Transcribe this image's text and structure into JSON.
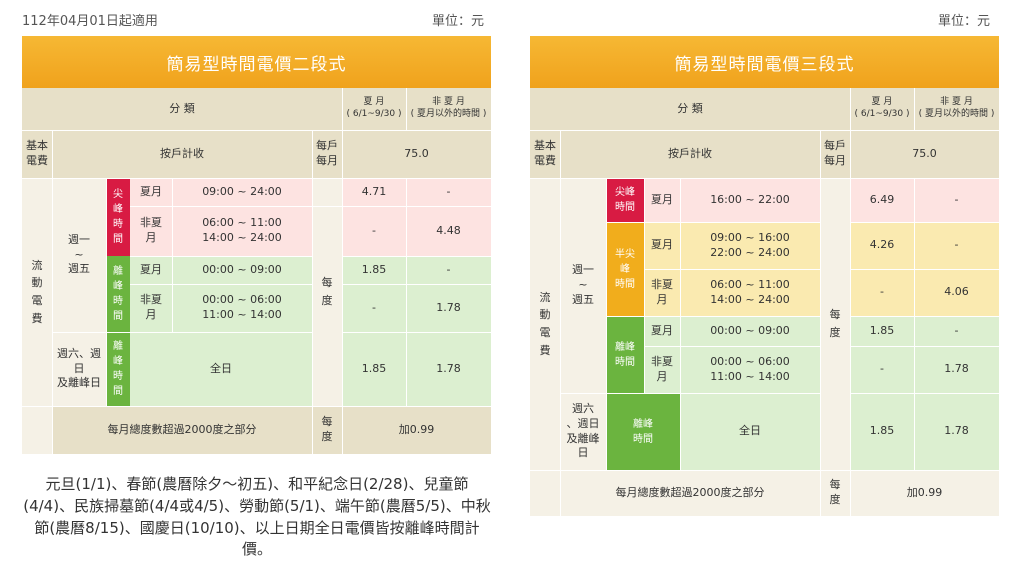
{
  "header": {
    "effective_date": "112年04月01日起適用",
    "unit_left": "單位：元",
    "unit_right": "單位：元"
  },
  "left_table": {
    "title": "簡易型時間電價二段式",
    "col_category": "分    類",
    "col_summer": "夏 月\n( 6/1~9/30 )",
    "col_nonsummer": "非 夏 月\n( 夏月以外的時間 )",
    "basic_fee_label": "基本\n電費",
    "per_household": "按戶計收",
    "per_month": "每戶\n每月",
    "basic_fee_value": "75.0",
    "flow_fee_label": "流\n動\n電\n費",
    "weekday_label": "週一\n~\n週五",
    "weekend_label": "週六、週\n日\n及離峰日",
    "peak_label": "尖\n峰\n時\n間",
    "offpeak_label": "離\n峰\n時\n間",
    "offpeak_weekend_label": "離\n峰\n時\n間",
    "summer": "夏月",
    "nonsummer": "非夏\n月",
    "peak_summer_time": "09:00 ~ 24:00",
    "peak_nonsummer_time": "06:00 ~ 11:00\n14:00 ~ 24:00",
    "off_summer_time": "00:00 ~ 09:00",
    "off_nonsummer_time": "00:00 ~ 06:00\n11:00 ~ 14:00",
    "all_day": "全日",
    "per_kwh": "每\n度",
    "peak_summer_price": "4.71",
    "peak_summer_ns": "-",
    "peak_ns_summer": "-",
    "peak_ns_price": "4.48",
    "off_summer_price": "1.85",
    "off_summer_ns": "-",
    "off_ns_summer": "-",
    "off_ns_price": "1.78",
    "weekend_summer": "1.85",
    "weekend_nonsummer": "1.78",
    "excess_label": "每月總度數超過2000度之部分",
    "excess_unit": "每\n度",
    "excess_value": "加0.99"
  },
  "right_table": {
    "title": "簡易型時間電價三段式",
    "col_category": "分    類",
    "col_summer": "夏 月\n( 6/1~9/30 )",
    "col_nonsummer": "非 夏 月\n( 夏月以外的時間 )",
    "basic_fee_label": "基本\n電費",
    "per_household": "按戶計收",
    "per_month": "每戶\n每月",
    "basic_fee_value": "75.0",
    "flow_fee_label": "流\n動\n電\n費",
    "weekday_label": "週一\n~\n週五",
    "weekend_label": "週六\n、週日\n及離峰\n日",
    "peak_label": "尖峰\n時間",
    "halfpeak_label": "半尖\n峰\n時間",
    "offpeak_label": "離峰\n時間",
    "offpeak_weekend_label": "離峰\n時間",
    "summer": "夏月",
    "nonsummer": "非夏\n月",
    "peak_summer_time": "16:00 ~ 22:00",
    "half_summer_time": "09:00 ~ 16:00\n22:00 ~ 24:00",
    "half_nonsummer_time": "06:00 ~ 11:00\n14:00 ~ 24:00",
    "off_summer_time": "00:00 ~ 09:00",
    "off_nonsummer_time": "00:00 ~ 06:00\n11:00 ~ 14:00",
    "all_day": "全日",
    "per_kwh": "每\n度",
    "peak_summer_price": "6.49",
    "peak_summer_ns": "-",
    "half_summer_price": "4.26",
    "half_summer_ns": "-",
    "half_ns_summer": "-",
    "half_ns_price": "4.06",
    "off_summer_price": "1.85",
    "off_summer_ns": "-",
    "off_ns_summer": "-",
    "off_ns_price": "1.78",
    "weekend_summer": "1.85",
    "weekend_nonsummer": "1.78",
    "excess_label": "每月總度數超過2000度之部分",
    "excess_unit": "每\n度",
    "excess_value": "加0.99"
  },
  "footnote": "元旦(1/1)、春節(農曆除夕～初五)、和平紀念日(2/28)、兒童節(4/4)、民族掃墓節(4/4或4/5)、勞動節(5/1)、端午節(農曆5/5)、中秋節(農曆8/15)、國慶日(10/10)、以上日期全日電價皆按離峰時間計價。"
}
